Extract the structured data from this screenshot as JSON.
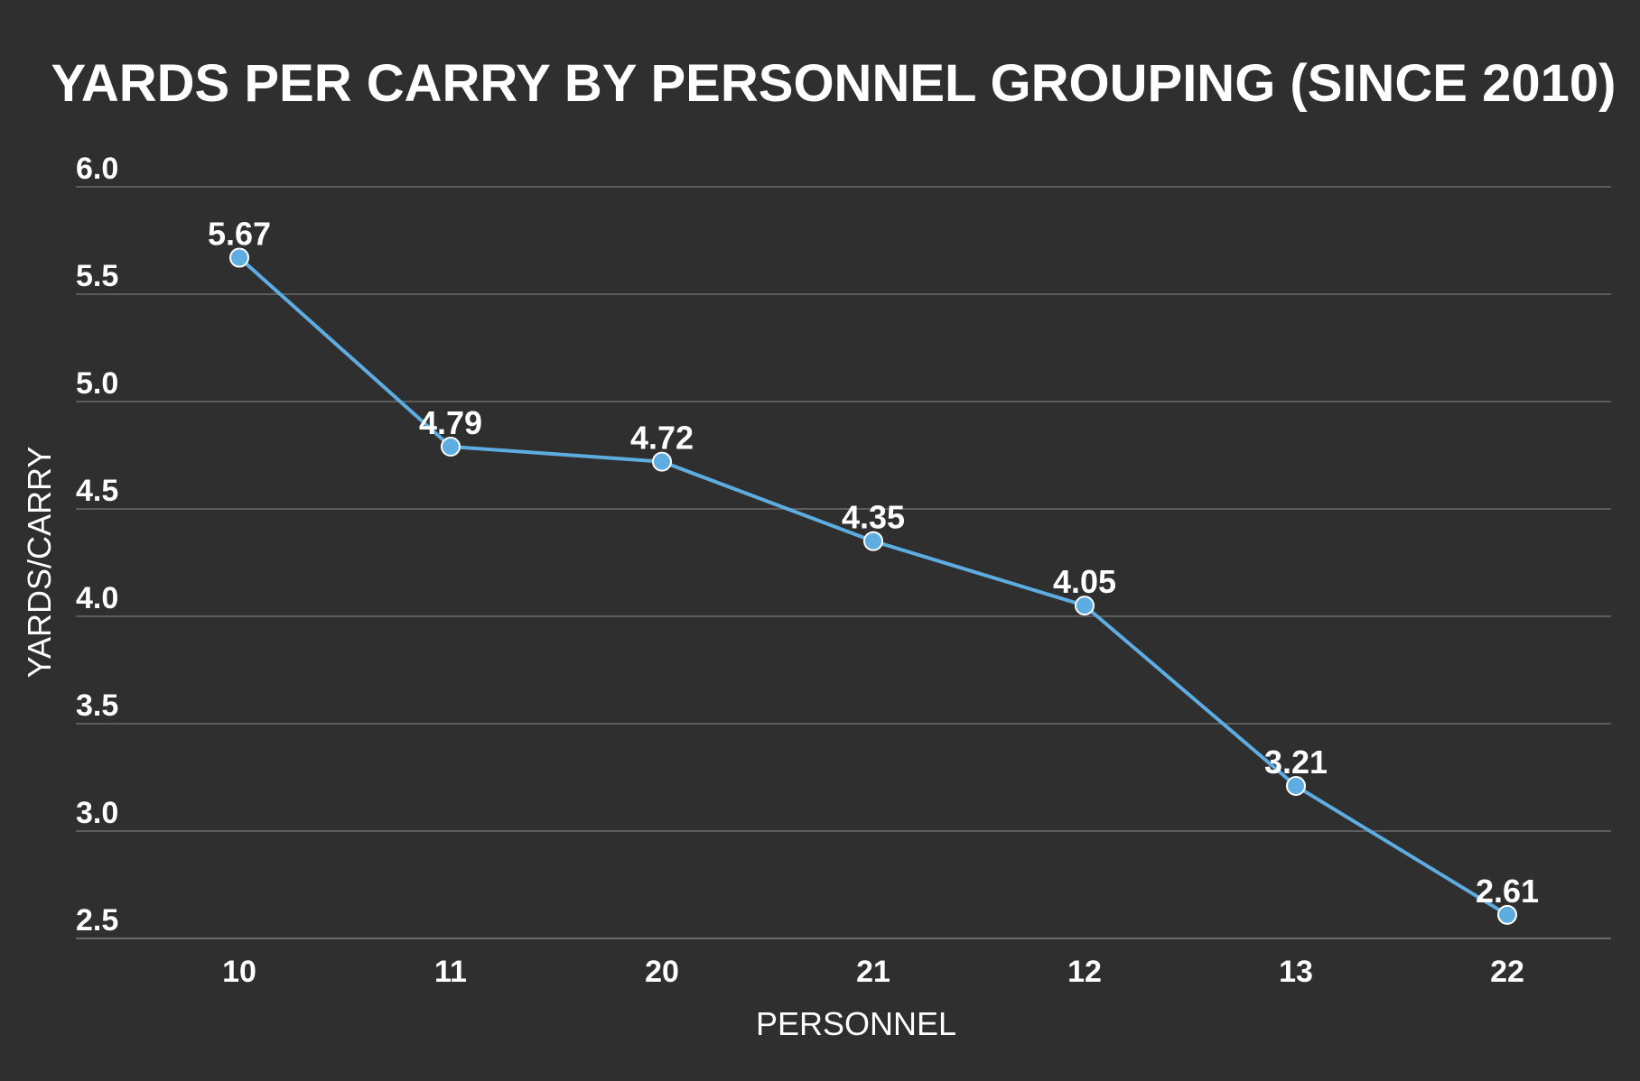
{
  "chart_data": {
    "type": "line",
    "title": "YARDS PER CARRY BY PERSONNEL GROUPING (SINCE 2010)",
    "xlabel": "PERSONNEL",
    "ylabel": "YARDS/CARRY",
    "categories": [
      "10",
      "11",
      "20",
      "21",
      "12",
      "13",
      "22"
    ],
    "series": [
      {
        "values": [
          5.67,
          4.79,
          4.72,
          4.35,
          4.05,
          3.21,
          2.61
        ],
        "labels": [
          "5.67",
          "4.79",
          "4.72",
          "4.35",
          "4.05",
          "3.21",
          "2.61"
        ]
      }
    ],
    "ylim": [
      2.5,
      6.0
    ],
    "yticks": [
      "2.5",
      "3.0",
      "3.5",
      "4.0",
      "4.5",
      "5.0",
      "5.5",
      "6.0"
    ],
    "grid": true,
    "legend": "none",
    "colors": {
      "background": "#2f2f2f",
      "line": "#5dade2",
      "text": "#ffffff",
      "grid": "#5c5c5c"
    }
  }
}
